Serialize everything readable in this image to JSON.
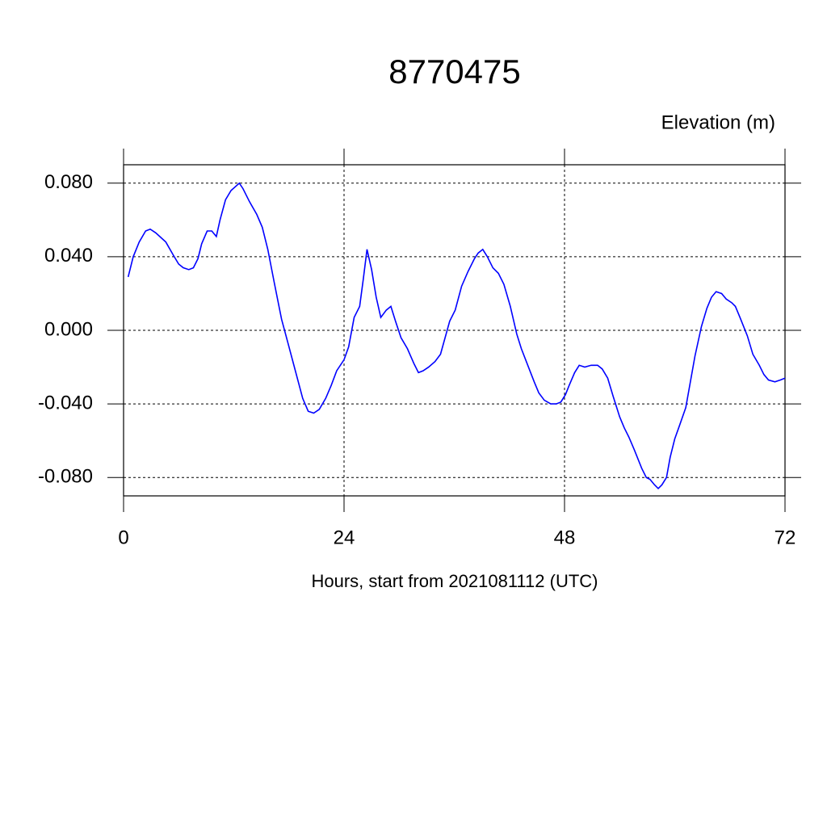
{
  "chart_data": {
    "type": "line",
    "title": "8770475",
    "ylabel": "Elevation (m)",
    "xlabel": "Hours, start from 2021081112 (UTC)",
    "x": [
      0.5,
      1.05,
      1.7,
      2.4,
      2.9,
      3.5,
      4.6,
      5.4,
      6.0,
      6.5,
      7.1,
      7.6,
      8.1,
      8.5,
      9.1,
      9.6,
      10.1,
      10.5,
      11.1,
      11.7,
      12.6,
      13.0,
      13.7,
      14.5,
      15.1,
      15.7,
      16.4,
      17.2,
      17.9,
      18.7,
      19.5,
      20.1,
      20.7,
      21.3,
      22.0,
      22.6,
      23.2,
      24.0,
      24.5,
      25.1,
      25.7,
      26.1,
      26.5,
      27.0,
      27.5,
      28.0,
      28.6,
      29.1,
      29.6,
      30.2,
      30.9,
      31.6,
      32.1,
      32.6,
      33.2,
      33.9,
      34.5,
      35.0,
      35.5,
      36.1,
      36.8,
      37.5,
      38.2,
      38.6,
      39.1,
      39.6,
      40.2,
      40.8,
      41.4,
      42.1,
      42.8,
      43.3,
      44.0,
      44.7,
      45.2,
      45.8,
      46.5,
      47.1,
      47.6,
      48.1,
      48.5,
      49.1,
      49.6,
      50.2,
      50.9,
      51.6,
      52.1,
      52.7,
      53.3,
      54.0,
      54.5,
      55.0,
      55.6,
      56.4,
      56.9,
      57.3,
      57.8,
      58.2,
      58.6,
      59.1,
      59.5,
      60.0,
      60.5,
      61.2,
      61.7,
      62.2,
      62.9,
      63.5,
      64.0,
      64.5,
      65.1,
      65.6,
      66.2,
      66.6,
      67.1,
      67.9,
      68.5,
      69.2,
      69.7,
      70.2,
      70.9,
      71.5,
      72.0
    ],
    "series": [
      {
        "name": "Elevation",
        "color": "#0000ff",
        "values": [
          0.029,
          0.04,
          0.048,
          0.054,
          0.055,
          0.053,
          0.048,
          0.041,
          0.036,
          0.034,
          0.033,
          0.034,
          0.039,
          0.047,
          0.054,
          0.054,
          0.051,
          0.06,
          0.071,
          0.076,
          0.08,
          0.077,
          0.07,
          0.063,
          0.056,
          0.044,
          0.026,
          0.006,
          -0.007,
          -0.022,
          -0.037,
          -0.044,
          -0.045,
          -0.043,
          -0.037,
          -0.03,
          -0.022,
          -0.016,
          -0.009,
          0.007,
          0.013,
          0.028,
          0.044,
          0.033,
          0.018,
          0.007,
          0.011,
          0.013,
          0.005,
          -0.004,
          -0.01,
          -0.018,
          -0.023,
          -0.022,
          -0.02,
          -0.017,
          -0.013,
          -0.004,
          0.005,
          0.011,
          0.024,
          0.032,
          0.039,
          0.042,
          0.044,
          0.04,
          0.034,
          0.031,
          0.025,
          0.013,
          -0.002,
          -0.01,
          -0.019,
          -0.028,
          -0.034,
          -0.038,
          -0.04,
          -0.04,
          -0.039,
          -0.035,
          -0.03,
          -0.023,
          -0.019,
          -0.02,
          -0.019,
          -0.019,
          -0.021,
          -0.026,
          -0.036,
          -0.047,
          -0.053,
          -0.058,
          -0.065,
          -0.075,
          -0.08,
          -0.081,
          -0.084,
          -0.086,
          -0.084,
          -0.08,
          -0.069,
          -0.059,
          -0.052,
          -0.042,
          -0.028,
          -0.014,
          0.002,
          0.012,
          0.018,
          0.021,
          0.02,
          0.017,
          0.015,
          0.013,
          0.007,
          -0.003,
          -0.013,
          -0.019,
          -0.024,
          -0.027,
          -0.028,
          -0.027,
          -0.026
        ]
      }
    ],
    "xlim": [
      0,
      72
    ],
    "xticks": [
      0,
      24,
      48,
      72
    ],
    "ylim": [
      -0.09,
      0.09
    ],
    "yticks": [
      {
        "value": -0.08,
        "label": "-0.080"
      },
      {
        "value": -0.04,
        "label": "-0.040"
      },
      {
        "value": 0,
        "label": "0.000"
      },
      {
        "value": 0.04,
        "label": "0.040"
      },
      {
        "value": 0.08,
        "label": "0.080"
      }
    ],
    "grid": true
  }
}
